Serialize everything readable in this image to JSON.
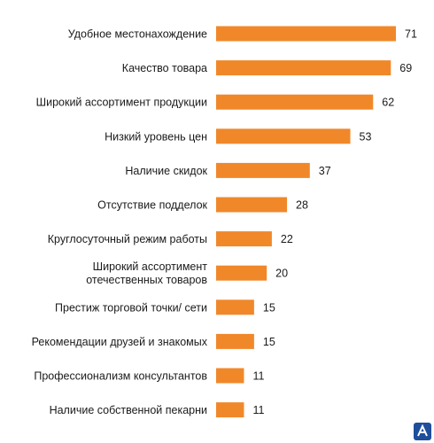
{
  "chart_data": {
    "type": "bar",
    "orientation": "horizontal",
    "title": "",
    "xlabel": "",
    "ylabel": "",
    "grid": false,
    "xlim": [
      0,
      71
    ],
    "bar_color": "#f0882a",
    "categories": [
      [
        "Удобное местонахождение"
      ],
      [
        "Качество товара"
      ],
      [
        "Широкий ассортимент продукции"
      ],
      [
        "Низкий уровень цен"
      ],
      [
        "Наличие скидок"
      ],
      [
        "Отсутствие подделок"
      ],
      [
        "Круглосуточный режим работы"
      ],
      [
        "Широкий ассортимент",
        "отечественных товаров"
      ],
      [
        "Престиж торговой точки/ сети"
      ],
      [
        "Рекомендации друзей и знакомых"
      ],
      [
        "Профессионализм консультантов"
      ],
      [
        "Наличие собственной пекарни"
      ]
    ],
    "values": [
      71,
      69,
      62,
      53,
      37,
      28,
      22,
      20,
      15,
      15,
      11,
      11
    ]
  },
  "logo": {
    "icon": "corner-logo-icon",
    "color": "#1f4e9a"
  }
}
